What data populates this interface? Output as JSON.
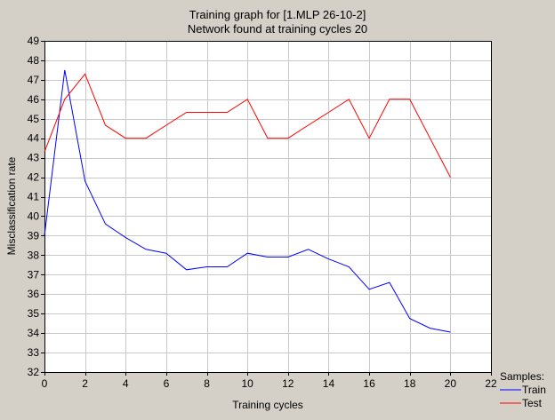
{
  "chart_data": {
    "type": "line",
    "title": "Training graph for [1.MLP 26-10-2]",
    "subtitle": "Network found at training cycles 20",
    "xlabel": "Training cycles",
    "ylabel": "Misclassification rate",
    "xlim": [
      0,
      22
    ],
    "ylim": [
      32,
      49
    ],
    "x_ticks": [
      0,
      2,
      4,
      6,
      8,
      10,
      12,
      14,
      16,
      18,
      20,
      22
    ],
    "y_ticks": [
      32,
      33,
      34,
      35,
      36,
      37,
      38,
      39,
      40,
      41,
      42,
      43,
      44,
      45,
      46,
      47,
      48,
      49
    ],
    "grid": true,
    "legend": {
      "title": "Samples:",
      "placement": "bottom-right outside"
    },
    "series": [
      {
        "name": "Train",
        "color": "#0000ff",
        "x": [
          0,
          1,
          2,
          3,
          4,
          5,
          6,
          7,
          8,
          9,
          10,
          11,
          12,
          13,
          14,
          15,
          16,
          17,
          18,
          19,
          20
        ],
        "values": [
          39.0,
          47.5,
          41.8,
          39.6,
          38.9,
          38.3,
          38.1,
          37.25,
          37.4,
          37.4,
          38.1,
          37.9,
          37.9,
          38.3,
          37.8,
          37.4,
          36.25,
          36.6,
          34.75,
          34.25,
          34.05
        ]
      },
      {
        "name": "Test",
        "color": "#ff0000",
        "x": [
          0,
          1,
          2,
          3,
          4,
          5,
          6,
          7,
          8,
          9,
          10,
          11,
          12,
          13,
          14,
          15,
          16,
          17,
          18,
          19,
          20
        ],
        "values": [
          43.3,
          46.0,
          47.3,
          44.67,
          44.0,
          44.0,
          44.67,
          45.33,
          45.33,
          45.33,
          46.0,
          44.0,
          44.0,
          44.67,
          45.33,
          46.0,
          44.0,
          46.0,
          46.0,
          44.0,
          42.0
        ]
      }
    ]
  }
}
